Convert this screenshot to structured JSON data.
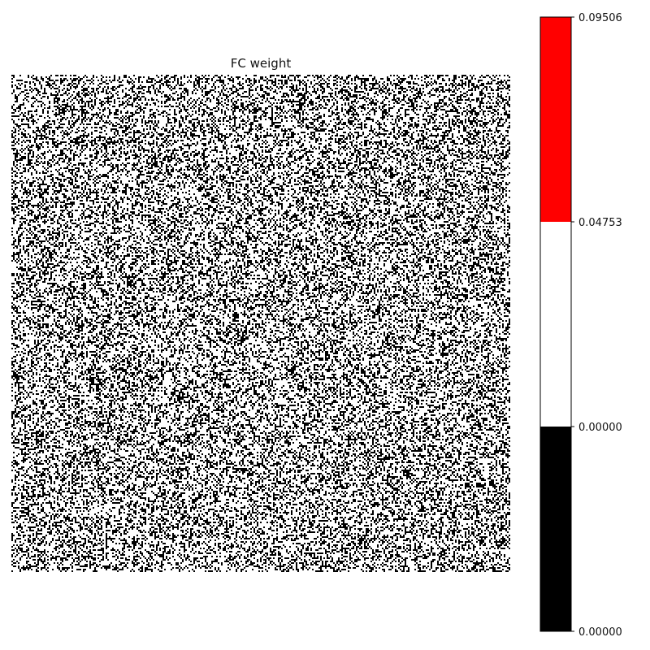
{
  "chart_data": {
    "type": "heatmap",
    "title": "FC weight",
    "description_pattern": "dense random binary-like noise (mostly 0 and ~0.04 values)",
    "grid": false,
    "colorbar": {
      "boundaries": [
        0.0,
        0.0,
        0.04753,
        0.09506
      ],
      "tick_labels": [
        "0.00000",
        "0.00000",
        "0.04753",
        "0.09506"
      ],
      "colors": [
        "#000000",
        "#ffffff",
        "#ff0000"
      ]
    },
    "fraction_black": 0.35
  }
}
